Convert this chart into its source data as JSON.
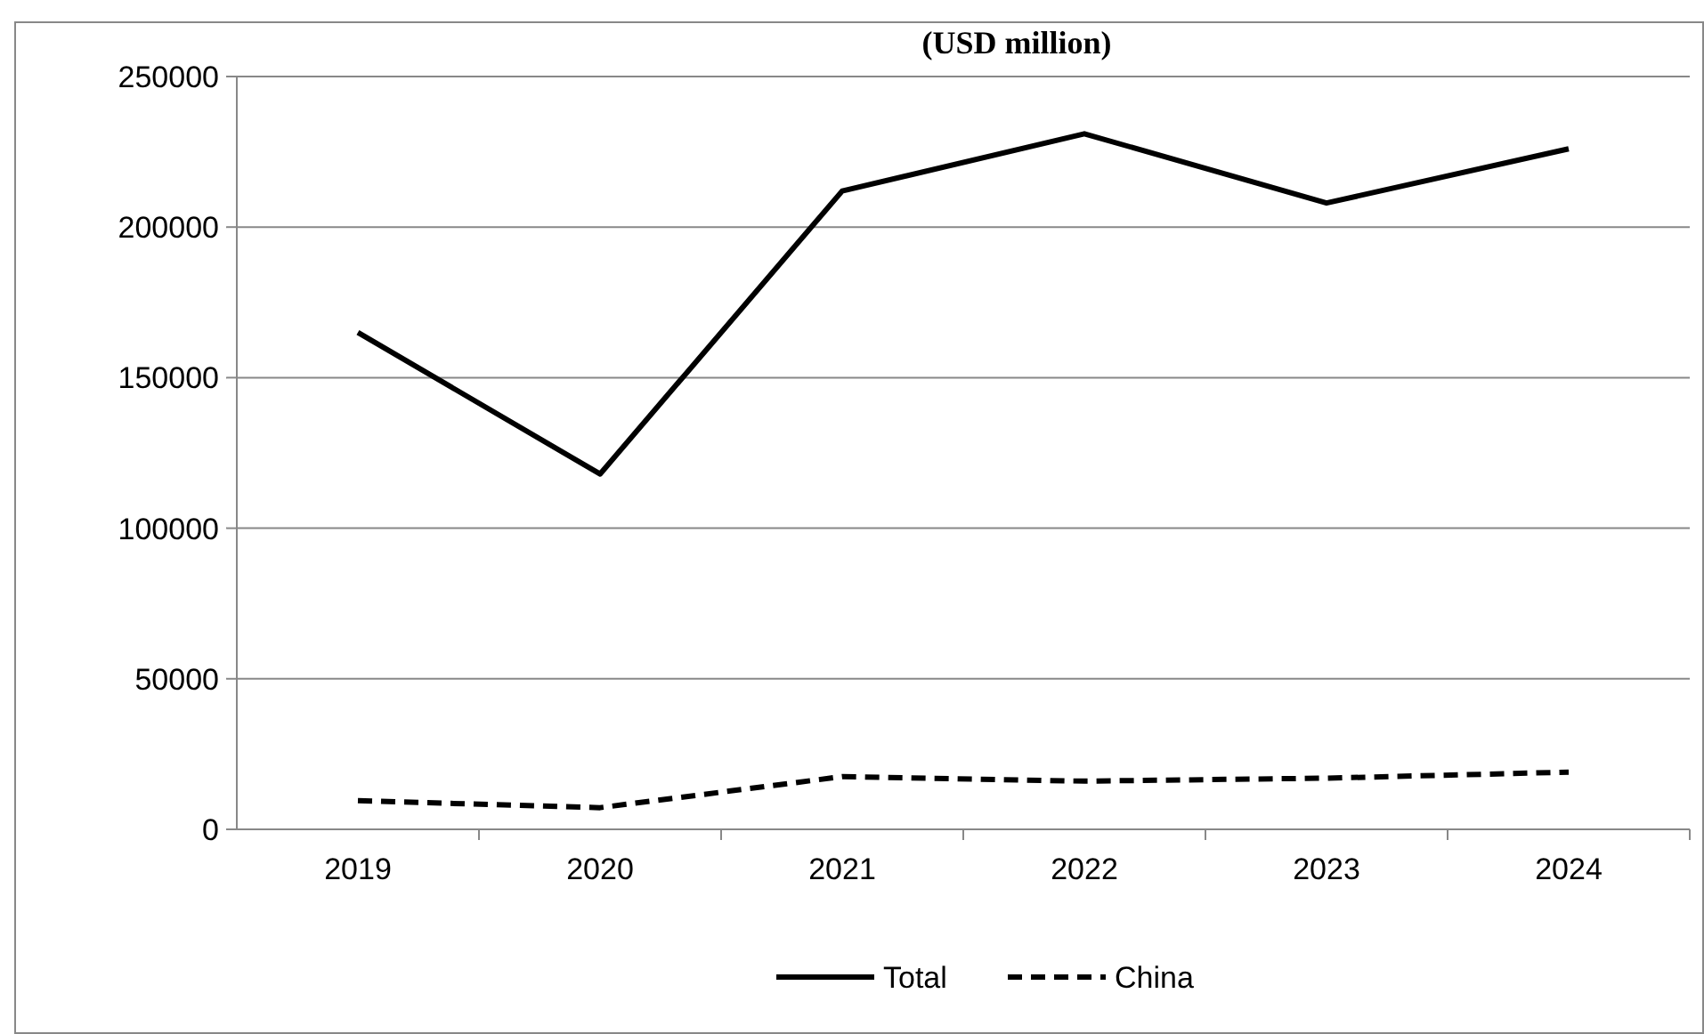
{
  "chart_data": {
    "type": "line",
    "title": "(USD million)",
    "categories": [
      "2019",
      "2020",
      "2021",
      "2022",
      "2023",
      "2024"
    ],
    "series": [
      {
        "name": "Total",
        "color": "#000000",
        "line_style": "solid",
        "values": [
          165000,
          118000,
          212000,
          231000,
          208000,
          226000
        ]
      },
      {
        "name": "China",
        "color": "#000000",
        "line_style": "dashed",
        "values": [
          9500,
          7200,
          17500,
          16000,
          17000,
          19000
        ]
      }
    ],
    "ylim": [
      0,
      250000
    ],
    "yticks": [
      0,
      50000,
      100000,
      150000,
      200000,
      250000
    ],
    "grid": "y",
    "legend": "bottom",
    "marker": "none"
  }
}
